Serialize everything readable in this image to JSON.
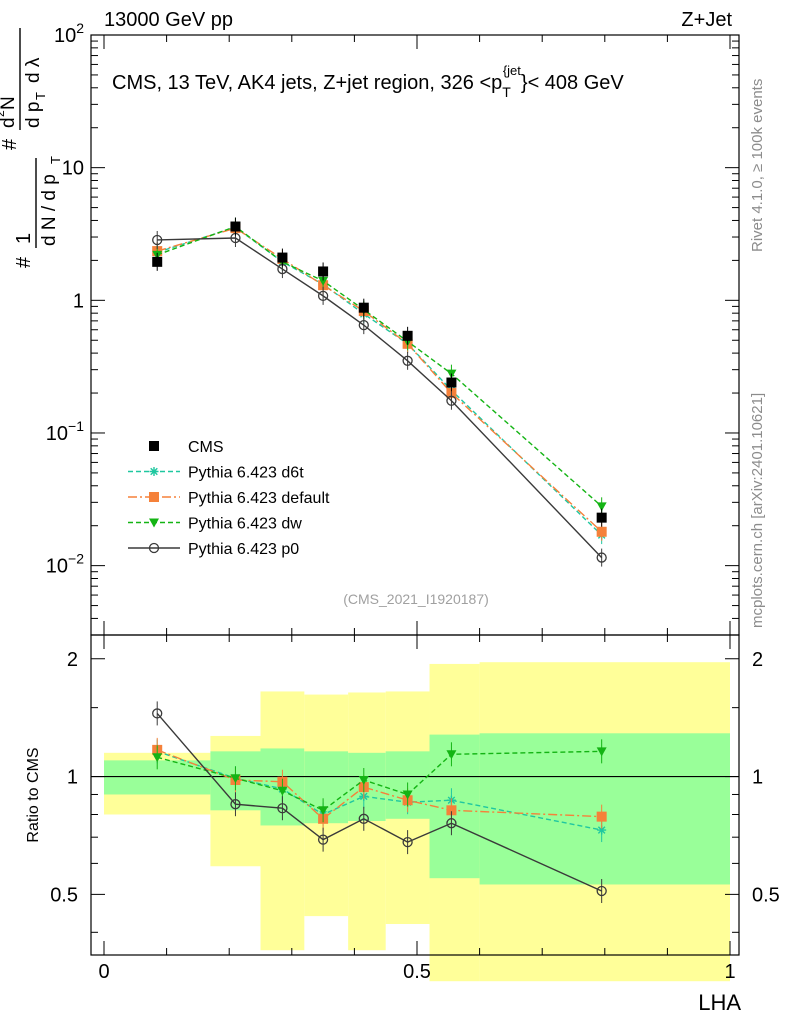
{
  "header": {
    "beam": "13000 GeV pp",
    "process": "Z+Jet"
  },
  "side_labels": {
    "rivet": "Rivet 4.1.0, ≥ 100k events",
    "site": "mcplots.cern.ch [arXiv:2401.10621]"
  },
  "chart_data": {
    "type": "line",
    "title": "CMS, 13 TeV, AK4 jets, Z+jet region, 326 <p_T^{jet}< 408 GeV",
    "title_parts": {
      "main": "CMS, 13 TeV, AK4 jets, Z+jet region, 326 <p",
      "sub": "T",
      "sup": "{jet",
      "tail": "}< 408 GeV"
    },
    "xlabel": "LHA",
    "ylabel_parts": {
      "hash1": "#",
      "one": "1",
      "dn": "d N / d p",
      "t": "T",
      "hash2": "#",
      "dnum": "d",
      "two": "2",
      "n": "N",
      "ddp": "d p",
      "t2": "T",
      "dl": "d λ"
    },
    "ratio_ylabel": "Ratio to CMS",
    "analysis_id": "(CMS_2021_I1920187)",
    "xlim": [
      0,
      1
    ],
    "ylim_main": [
      0.003,
      100
    ],
    "ylim_ratio": [
      0.35,
      2.3
    ],
    "x_ticks": [
      "0",
      "0.5",
      "1"
    ],
    "y_ticks_main": [
      {
        "base": "10",
        "exp": "2"
      },
      {
        "base": "10",
        "exp": ""
      },
      {
        "base": "1",
        "exp": ""
      },
      {
        "base": "10",
        "exp": "−1"
      },
      {
        "base": "10",
        "exp": "−2"
      }
    ],
    "y_ticks_ratio": [
      "2",
      "1",
      "0.5"
    ],
    "bins": [
      [
        0.0,
        0.17
      ],
      [
        0.17,
        0.25
      ],
      [
        0.25,
        0.32
      ],
      [
        0.32,
        0.39
      ],
      [
        0.39,
        0.45
      ],
      [
        0.45,
        0.52
      ],
      [
        0.52,
        0.6
      ],
      [
        0.6,
        1.0
      ]
    ],
    "band_inner": [
      [
        0.9,
        1.1
      ],
      [
        0.82,
        1.16
      ],
      [
        0.75,
        1.18
      ],
      [
        0.76,
        1.16
      ],
      [
        0.77,
        1.15
      ],
      [
        0.78,
        1.16
      ],
      [
        0.55,
        1.28
      ],
      [
        0.53,
        1.29
      ]
    ],
    "band_outer": [
      [
        0.8,
        1.15
      ],
      [
        0.59,
        1.27
      ],
      [
        0.36,
        1.65
      ],
      [
        0.44,
        1.62
      ],
      [
        0.36,
        1.64
      ],
      [
        0.42,
        1.65
      ],
      [
        0.3,
        1.94
      ],
      [
        0.3,
        1.96
      ]
    ],
    "x": [
      0.085,
      0.21,
      0.285,
      0.35,
      0.415,
      0.485,
      0.555,
      0.795
    ],
    "series": [
      {
        "name": "CMS",
        "color": "#000000",
        "marker": "square",
        "dash": "none",
        "is_data": true,
        "values": [
          1.95,
          3.6,
          2.1,
          1.65,
          0.88,
          0.54,
          0.24,
          0.023
        ],
        "ratio": [
          1,
          1,
          1,
          1,
          1,
          1,
          1,
          1
        ]
      },
      {
        "name": "Pythia 6.423 d6t",
        "color": "#1fc7a0",
        "marker": "star",
        "dash": "5,3",
        "values": [
          2.3,
          3.55,
          1.95,
          1.32,
          0.79,
          0.47,
          0.21,
          0.017
        ],
        "ratio": [
          1.16,
          0.99,
          0.93,
          0.8,
          0.89,
          0.86,
          0.87,
          0.73
        ]
      },
      {
        "name": "Pythia 6.423 default",
        "color": "#f5813a",
        "marker": "square",
        "dash": "9,3,2,3",
        "values": [
          2.35,
          3.5,
          2.05,
          1.3,
          0.83,
          0.47,
          0.2,
          0.018
        ],
        "ratio": [
          1.17,
          0.98,
          0.97,
          0.78,
          0.94,
          0.87,
          0.82,
          0.79
        ]
      },
      {
        "name": "Pythia 6.423 dw",
        "color": "#14b414",
        "marker": "triangle-down",
        "dash": "5,3",
        "values": [
          2.2,
          3.6,
          1.95,
          1.4,
          0.85,
          0.49,
          0.28,
          0.028
        ],
        "ratio": [
          1.12,
          0.99,
          0.92,
          0.82,
          0.98,
          0.9,
          1.14,
          1.16
        ]
      },
      {
        "name": "Pythia 6.423 p0",
        "color": "#3a3a3a",
        "marker": "circle-open",
        "dash": "none",
        "values": [
          2.85,
          2.95,
          1.72,
          1.08,
          0.65,
          0.35,
          0.175,
          0.0115
        ],
        "ratio": [
          1.45,
          0.85,
          0.83,
          0.69,
          0.78,
          0.68,
          0.76,
          0.51
        ]
      }
    ],
    "legend_position": "bottom-left"
  },
  "colors": {
    "band_inner": "#99ff99",
    "band_outer": "#ffff99",
    "axis": "#000000"
  }
}
